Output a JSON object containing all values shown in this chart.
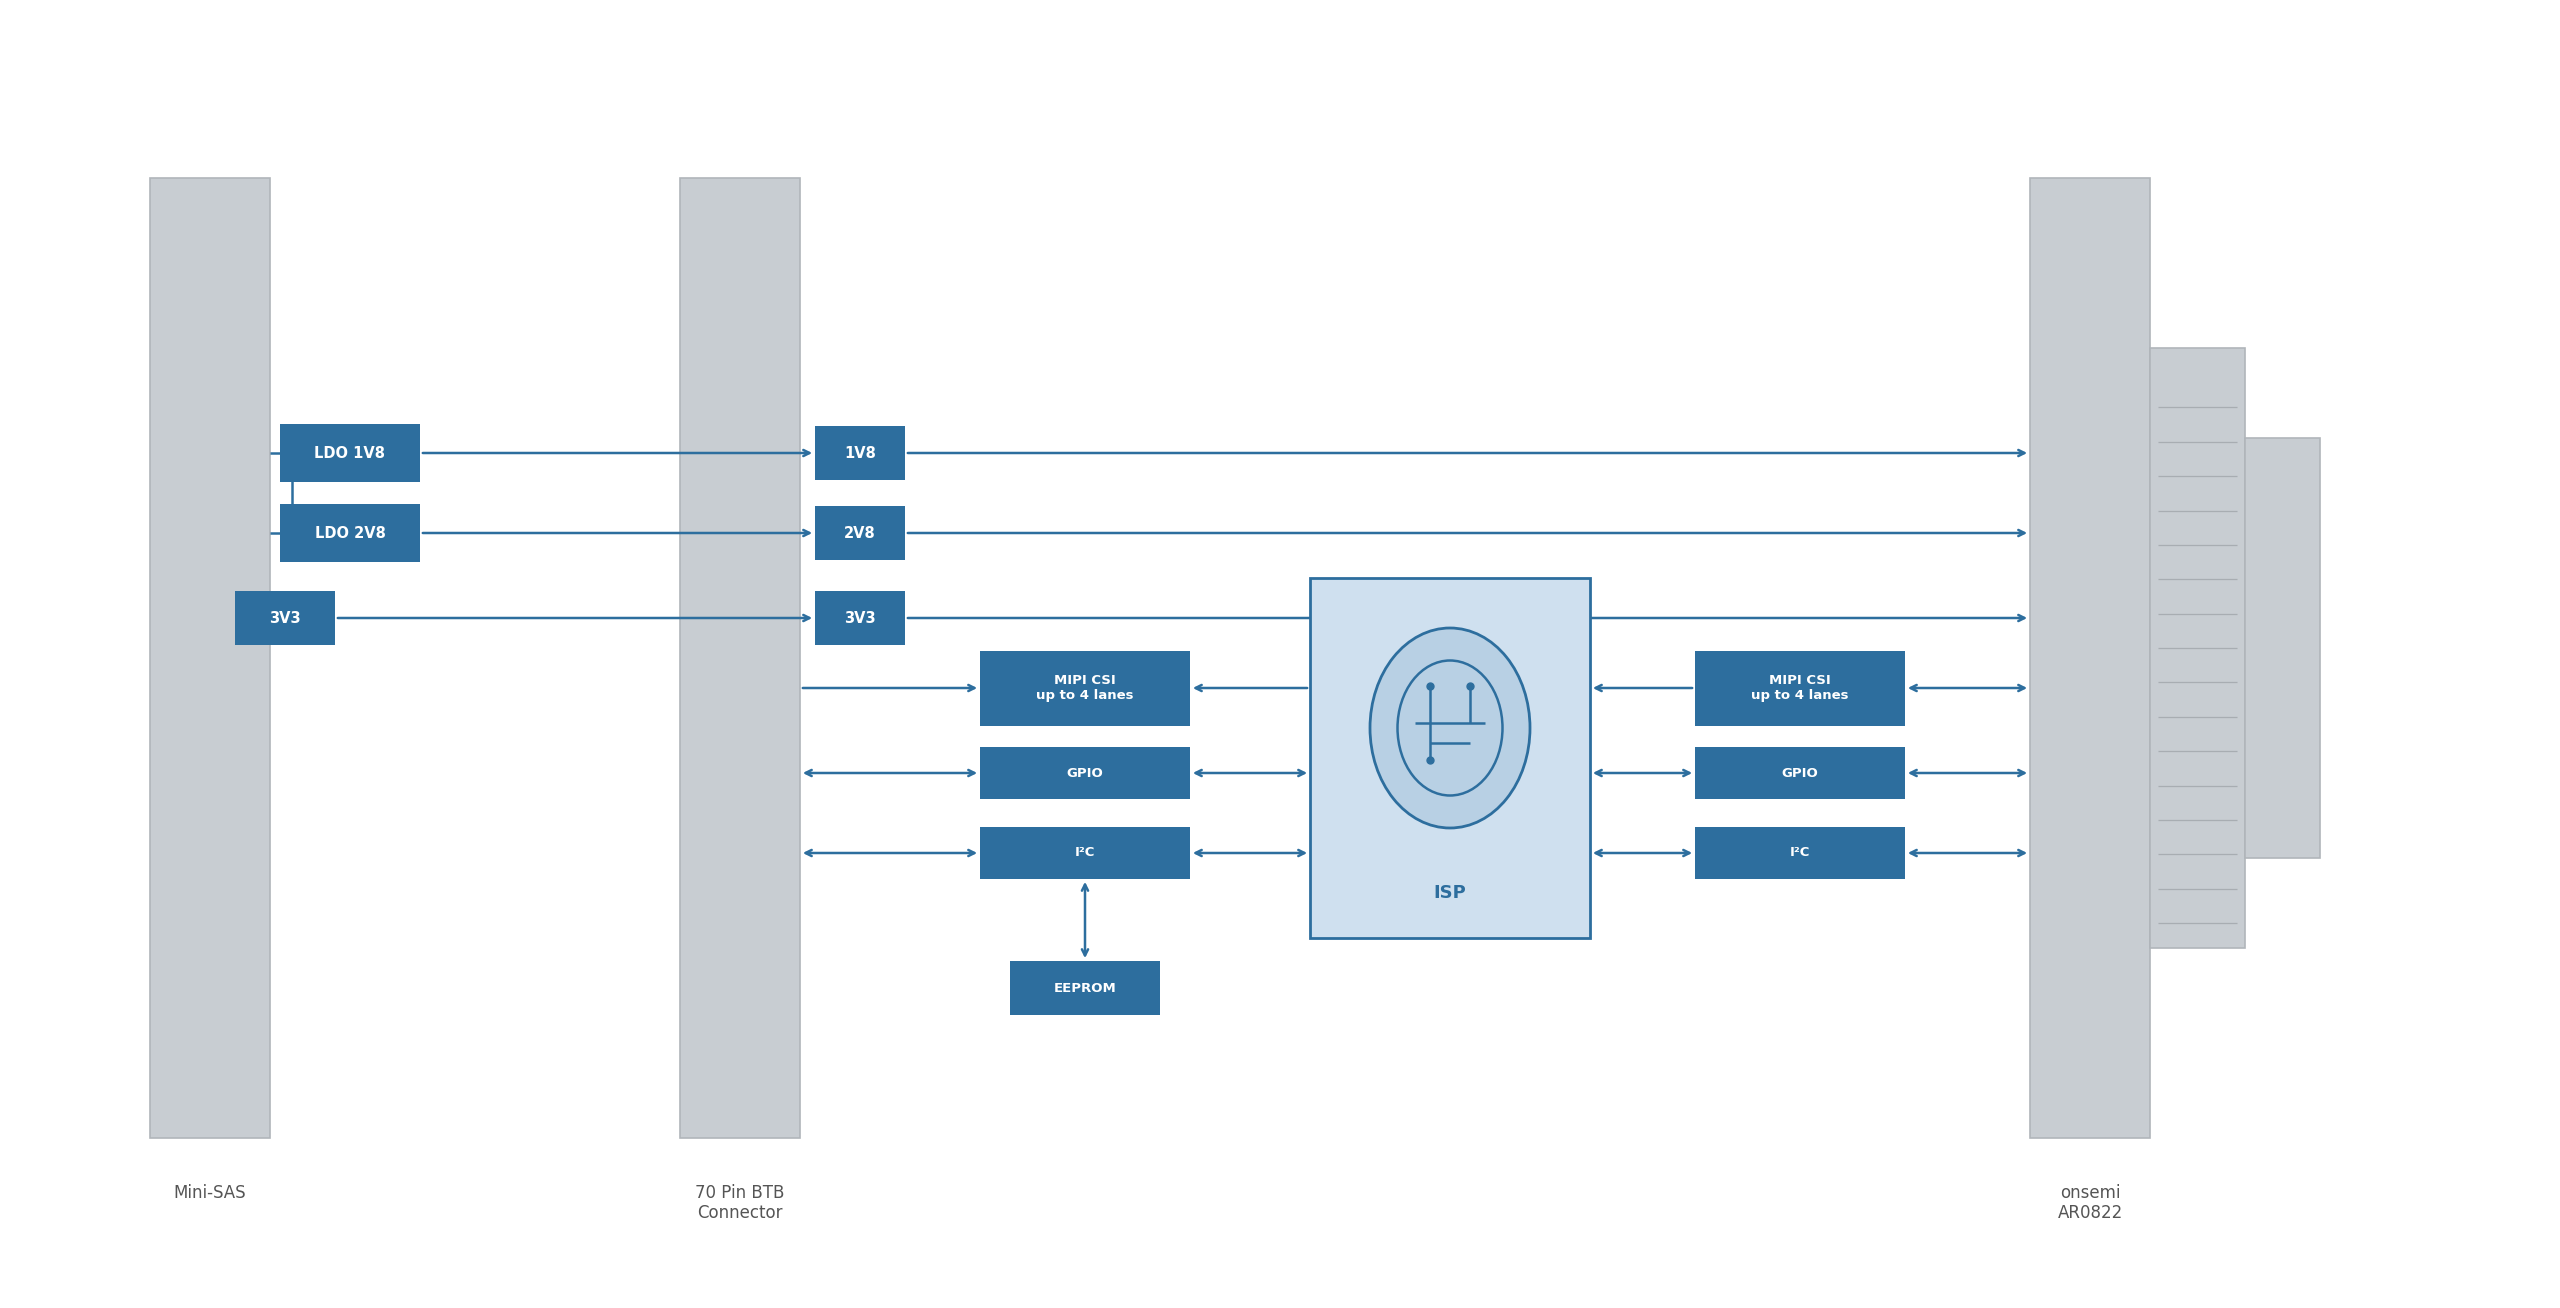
{
  "bg_color": "#ffffff",
  "block_color": "#2d6e9e",
  "block_text_color": "#ffffff",
  "isp_bg_color": "#cfe0ef",
  "isp_border_color": "#2d6e9e",
  "connector_color": "#c8cdd2",
  "connector_border": "#b0b5ba",
  "arrow_color": "#2d6e9e",
  "label_color": "#555555",
  "mini_sas_label": "Mini-SAS",
  "btb_label": "70 Pin BTB\nConnector",
  "onsemi_label": "onsemi\nAR0822",
  "isp_label": "ISP",
  "ldo1v8_label": "LDO 1V8",
  "ldo2v8_label": "LDO 2V8",
  "v3v3_label": "3V3",
  "v1v8_label": "1V8",
  "v2v8_label": "2V8",
  "v3v3b_label": "3V3",
  "mipi_label": "MIPI CSI\nup to 4 lanes",
  "gpio_label": "GPIO",
  "i2c_label": "I²C",
  "eeprom_label": "EEPROM",
  "mipi_r_label": "MIPI CSI\nup to 4 lanes",
  "gpio_r_label": "GPIO",
  "i2c_r_label": "I²C"
}
